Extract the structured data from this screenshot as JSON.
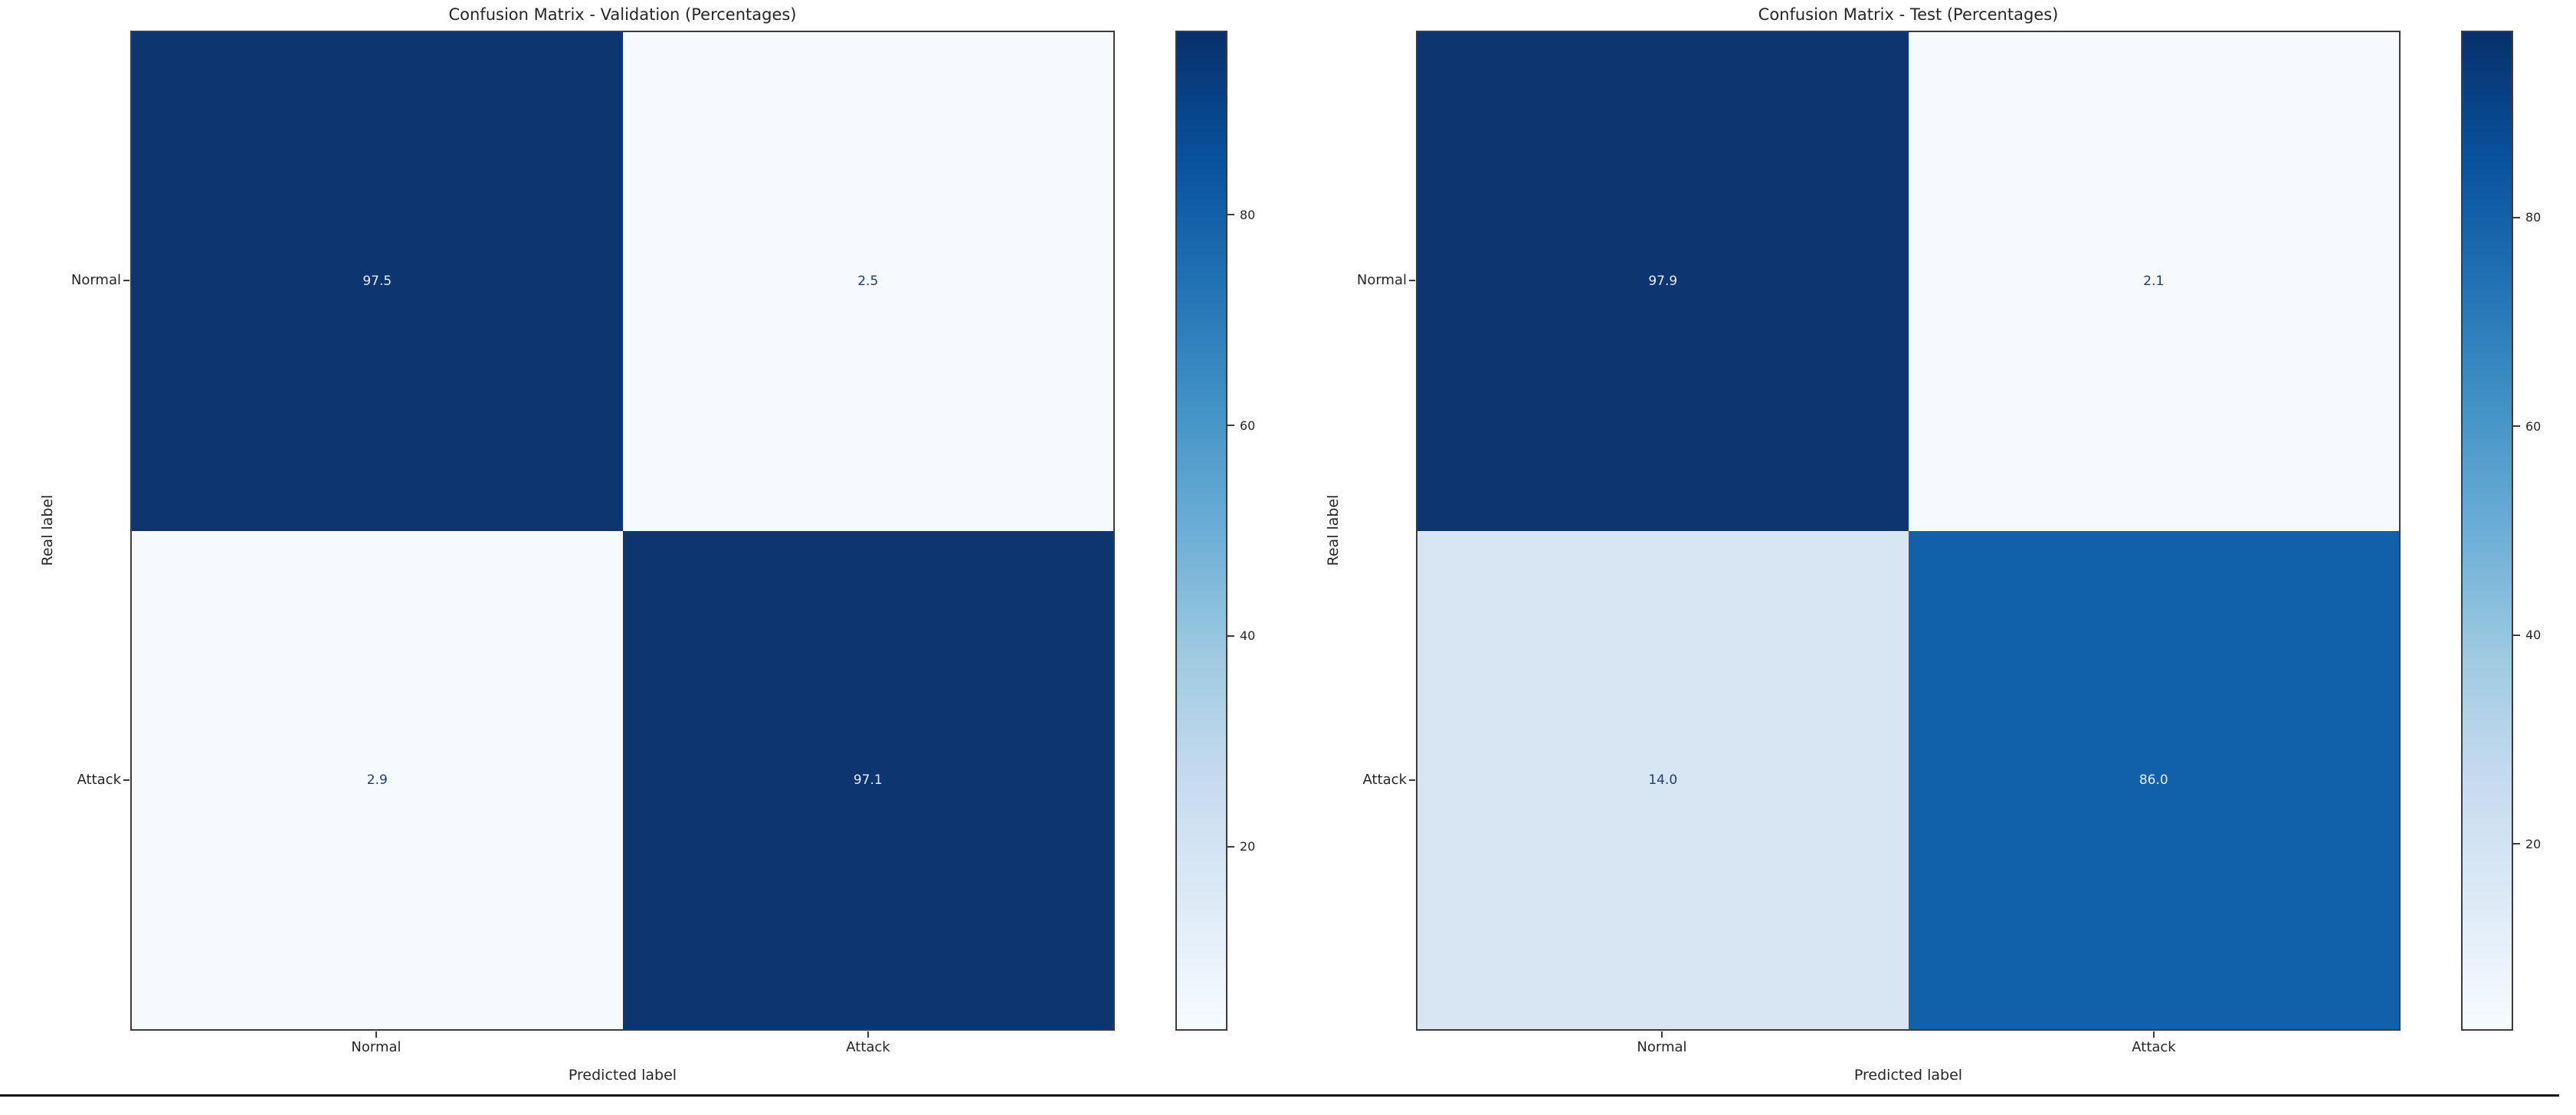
{
  "page": {
    "background": "#ffffff",
    "bottom_rule_color": "#151515"
  },
  "colorbar_gradient": [
    "#08306b",
    "#08519c",
    "#2171b5",
    "#4292c6",
    "#6baed6",
    "#9ecae1",
    "#c6dbef",
    "#deebf7",
    "#f7fbff"
  ],
  "chart_data": [
    {
      "type": "heatmap",
      "title": "Confusion Matrix - Validation (Percentages)",
      "xlabel": "Predicted label",
      "ylabel": "Real label",
      "x_categories": [
        "Normal",
        "Attack"
      ],
      "y_categories": [
        "Normal",
        "Attack"
      ],
      "values": [
        [
          97.5,
          2.5
        ],
        [
          2.9,
          97.1
        ]
      ],
      "cells": [
        {
          "label": "97.5",
          "bg": "#0d3570",
          "text": "#e8edf4"
        },
        {
          "label": "2.5",
          "bg": "#f6fafe",
          "text": "#1c3f72"
        },
        {
          "label": "2.9",
          "bg": "#f6fafe",
          "text": "#1c3f72"
        },
        {
          "label": "97.1",
          "bg": "#0d3570",
          "text": "#e8edf4"
        }
      ],
      "colorbar": {
        "vmin": 2.5,
        "vmax": 97.5,
        "ticks": [
          80,
          60,
          40,
          20
        ]
      },
      "colormap": "Blues",
      "legend_position": "right-colorbar",
      "grid": false
    },
    {
      "type": "heatmap",
      "title": "Confusion Matrix - Test (Percentages)",
      "xlabel": "Predicted label",
      "ylabel": "Real label",
      "x_categories": [
        "Normal",
        "Attack"
      ],
      "y_categories": [
        "Normal",
        "Attack"
      ],
      "values": [
        [
          97.9,
          2.1
        ],
        [
          14.0,
          86.0
        ]
      ],
      "cells": [
        {
          "label": "97.9",
          "bg": "#0d3570",
          "text": "#e8edf4"
        },
        {
          "label": "2.1",
          "bg": "#f6fafe",
          "text": "#1c3f72"
        },
        {
          "label": "14.0",
          "bg": "#d8e5f2",
          "text": "#1c3f72"
        },
        {
          "label": "86.0",
          "bg": "#1161a8",
          "text": "#e8edf4"
        }
      ],
      "colorbar": {
        "vmin": 2.1,
        "vmax": 97.9,
        "ticks": [
          80,
          60,
          40,
          20
        ]
      },
      "colormap": "Blues",
      "legend_position": "right-colorbar",
      "grid": false
    }
  ]
}
